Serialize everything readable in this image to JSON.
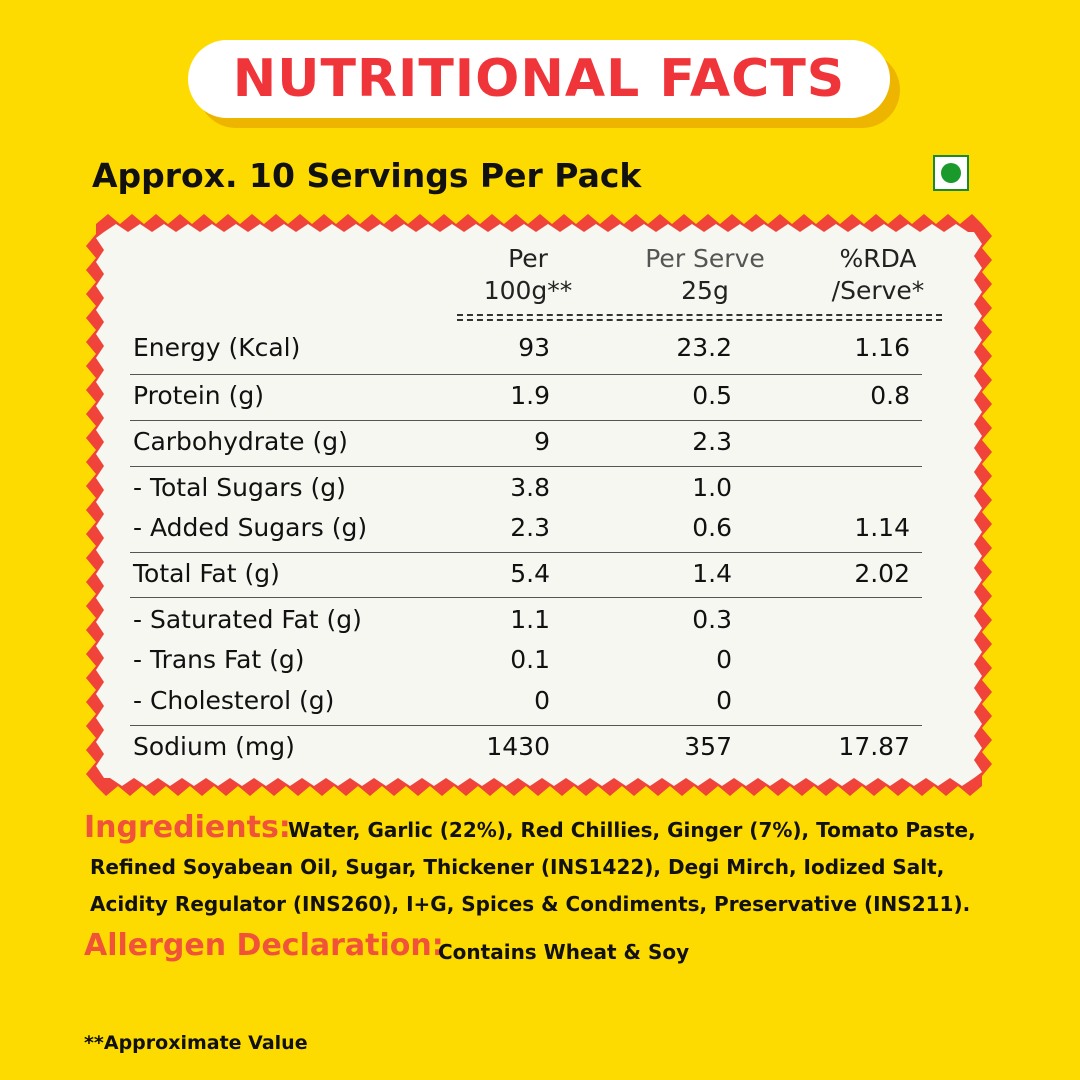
{
  "title": "NUTRITIONAL FACTS",
  "servings": "Approx. 10 Servings Per Pack",
  "veg_mark_icon": "veg-symbol-icon",
  "colors": {
    "background": "#FDDB00",
    "accent_red": "#F0353A",
    "card": "#F7F7F2",
    "veg_green": "#1a9a2a"
  },
  "table": {
    "headers": {
      "col1_line1": "Per",
      "col1_line2": "100g**",
      "col2_line1": "Per Serve",
      "col2_line2": "25g",
      "col3_line1": "%RDA",
      "col3_line2": "/Serve*"
    },
    "rows": [
      {
        "label": "Energy (Kcal)",
        "per100": "93",
        "perServe": "23.2",
        "rda": "1.16"
      },
      {
        "label": "Protein (g)",
        "per100": "1.9",
        "perServe": "0.5",
        "rda": "0.8"
      },
      {
        "label": "Carbohydrate (g)",
        "per100": "9",
        "perServe": "2.3",
        "rda": ""
      },
      {
        "label": "- Total Sugars (g)",
        "per100": "3.8",
        "perServe": "1.0",
        "rda": ""
      },
      {
        "label": "- Added Sugars (g)",
        "per100": "2.3",
        "perServe": "0.6",
        "rda": "1.14"
      },
      {
        "label": "Total Fat (g)",
        "per100": "5.4",
        "perServe": "1.4",
        "rda": "2.02"
      },
      {
        "label": "- Saturated Fat (g)",
        "per100": "1.1",
        "perServe": "0.3",
        "rda": ""
      },
      {
        "label": "- Trans Fat (g)",
        "per100": "0.1",
        "perServe": "0",
        "rda": ""
      },
      {
        "label": "- Cholesterol (g)",
        "per100": "0",
        "perServe": "0",
        "rda": ""
      },
      {
        "label": "Sodium (mg)",
        "per100": "1430",
        "perServe": "357",
        "rda": "17.87"
      }
    ]
  },
  "ingredients": {
    "label": "Ingredients:",
    "line1": "Water, Garlic (22%), Red Chillies, Ginger (7%), Tomato Paste,",
    "line2": "Refined Soyabean Oil, Sugar, Thickener (INS1422), Degi Mirch, Iodized Salt,",
    "line3": "Acidity Regulator (INS260), I+G, Spices & Condiments, Preservative (INS211)."
  },
  "allergen": {
    "label": "Allergen Declaration:",
    "text": "Contains Wheat & Soy"
  },
  "footnote": "**Approximate Value"
}
